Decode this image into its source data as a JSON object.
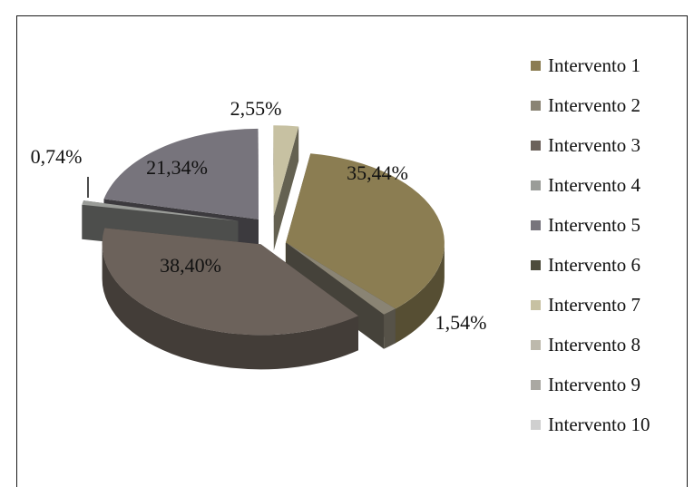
{
  "chart_data": {
    "type": "pie",
    "style": "3d-exploded",
    "categories": [
      "Intervento 1",
      "Intervento 2",
      "Intervento 3",
      "Intervento 4",
      "Intervento 5",
      "Intervento 6",
      "Intervento 7",
      "Intervento 8",
      "Intervento 9",
      "Intervento 10"
    ],
    "values": [
      35.44,
      1.54,
      38.4,
      0.74,
      21.34,
      0.0,
      2.55,
      0.0,
      0.0,
      0.0
    ],
    "labels": [
      "35,44%",
      "1,54%",
      "38,40%",
      "0,74%",
      "21,34%",
      "",
      "2,55%",
      "",
      "",
      ""
    ],
    "colors": [
      "#8b7d52",
      "#8a8474",
      "#6c625b",
      "#9a9c98",
      "#77747c",
      "#4d4c3c",
      "#c7c1a2",
      "#bdb9ac",
      "#aaa8a2",
      "#cfcfcf"
    ],
    "legend_position": "right"
  }
}
